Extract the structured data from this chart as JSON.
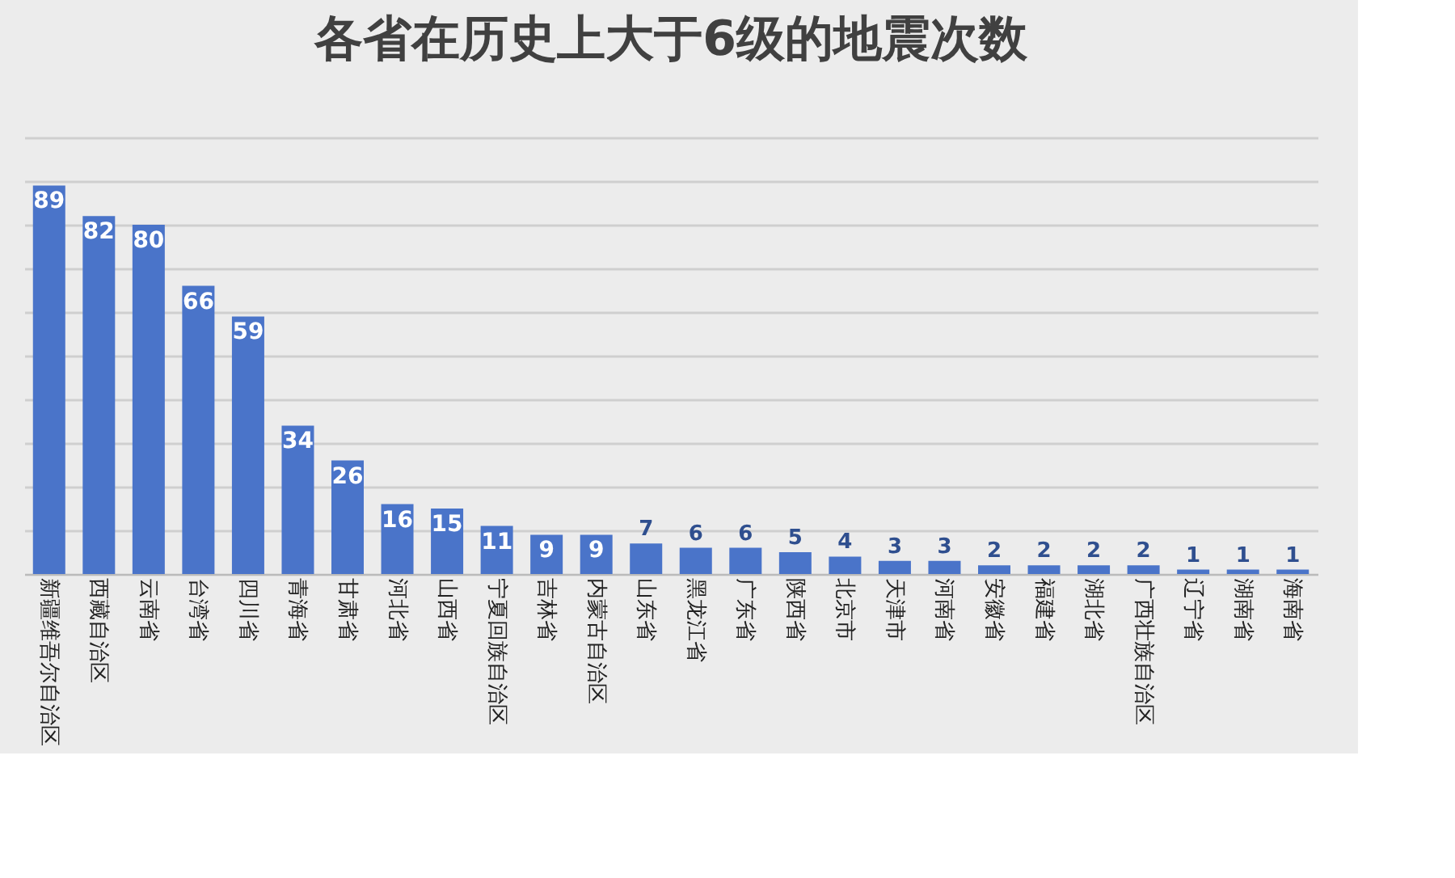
{
  "chart_data": {
    "type": "bar",
    "title": "各省在历史上大于6级的地震次数",
    "categories": [
      "新疆维吾尔自治区",
      "西藏自治区",
      "云南省",
      "台湾省",
      "四川省",
      "青海省",
      "甘肃省",
      "河北省",
      "山西省",
      "宁夏回族自治区",
      "吉林省",
      "内蒙古自治区",
      "山东省",
      "黑龙江省",
      "广东省",
      "陕西省",
      "北京市",
      "天津市",
      "河南省",
      "安徽省",
      "福建省",
      "湖北省",
      "广西壮族自治区",
      "辽宁省",
      "湖南省",
      "海南省"
    ],
    "values": [
      89,
      82,
      80,
      66,
      59,
      34,
      26,
      16,
      15,
      11,
      9,
      9,
      7,
      6,
      6,
      5,
      4,
      3,
      3,
      2,
      2,
      2,
      2,
      1,
      1,
      1
    ],
    "color": "#4a74c9",
    "data_labels": true,
    "ylim": [
      0,
      100
    ],
    "grid": "y",
    "tick_labels": "x"
  }
}
